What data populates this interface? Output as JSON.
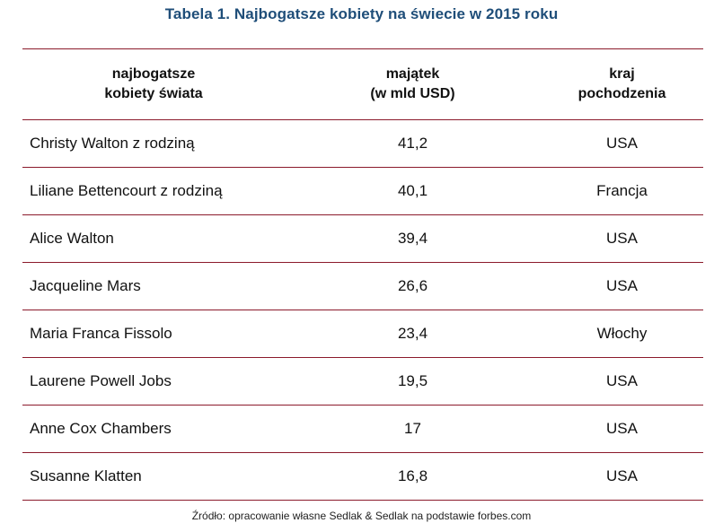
{
  "title": "Tabela 1. Najbogatsze kobiety na świecie w 2015 roku",
  "table": {
    "headers": [
      [
        "najbogatsze",
        "kobiety świata"
      ],
      [
        "majątek",
        "(w mld USD)"
      ],
      [
        "kraj",
        "pochodzenia"
      ]
    ],
    "rows": [
      {
        "name": "Christy Walton z rodziną",
        "value": "41,2",
        "country": "USA"
      },
      {
        "name": "Liliane Bettencourt z rodziną",
        "value": "40,1",
        "country": "Francja"
      },
      {
        "name": "Alice Walton",
        "value": "39,4",
        "country": "USA"
      },
      {
        "name": "Jacqueline Mars",
        "value": "26,6",
        "country": "USA"
      },
      {
        "name": "Maria Franca Fissolo",
        "value": "23,4",
        "country": "Włochy"
      },
      {
        "name": "Laurene Powell Jobs",
        "value": "19,5",
        "country": "USA"
      },
      {
        "name": "Anne Cox Chambers",
        "value": "17",
        "country": "USA"
      },
      {
        "name": "Susanne Klatten",
        "value": "16,8",
        "country": "USA"
      }
    ]
  },
  "source": "Źródło: opracowanie własne Sedlak & Sedlak na podstawie forbes.com",
  "colors": {
    "title": "#1f4e79",
    "rule": "#8b1a2b",
    "text": "#111111"
  }
}
